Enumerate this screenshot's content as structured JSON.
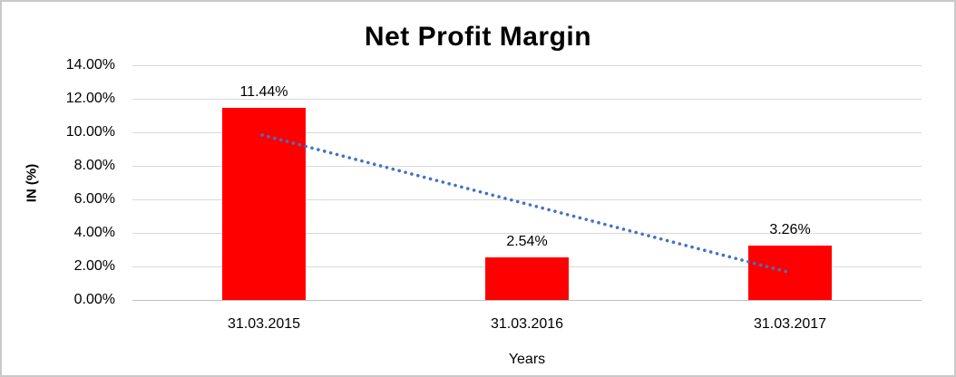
{
  "chart_data": {
    "type": "bar",
    "title": "Net Profit Margin",
    "categories": [
      "31.03.2015",
      "31.03.2016",
      "31.03.2017"
    ],
    "values": [
      11.44,
      2.54,
      3.26
    ],
    "data_labels": [
      "11.44%",
      "2.54%",
      "3.26%"
    ],
    "xlabel": "Years",
    "ylabel": "IN (%)",
    "ylim": [
      0,
      14
    ],
    "ytick_step": 2,
    "ytick_labels": [
      "0.00%",
      "2.00%",
      "4.00%",
      "6.00%",
      "8.00%",
      "10.00%",
      "12.00%",
      "14.00%"
    ],
    "legend": "none",
    "grid": "horizontal",
    "colors": {
      "bar": "#ff0000",
      "trendline": "#4472c4",
      "gridline": "#d9d9d9",
      "axis_line": "#bfbfbf",
      "text": "#000000"
    },
    "trendline": {
      "type": "linear",
      "style": "dotted",
      "start_value": 9.84,
      "end_value": 1.66
    }
  }
}
